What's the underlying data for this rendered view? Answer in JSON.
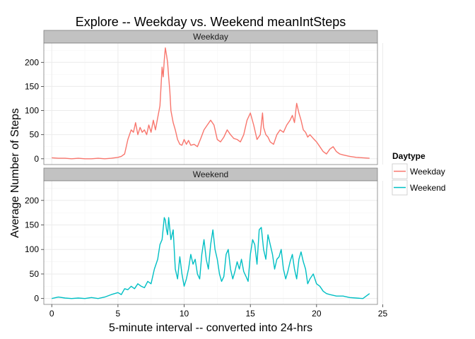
{
  "chart_data": {
    "type": "line",
    "title": "Explore -- Weekday vs. Weekend meanIntSteps",
    "xlabel": "5-minute interval -- converted into 24-hrs",
    "ylabel": "Average Number of Steps",
    "xlim": [
      -0.6,
      24.6
    ],
    "ylim": [
      -12,
      240
    ],
    "x_ticks": [
      0,
      5,
      10,
      15,
      20,
      25
    ],
    "y_ticks": [
      0,
      50,
      100,
      150,
      200
    ],
    "grid": true,
    "legend": {
      "title": "Daytype",
      "position": "right",
      "entries": [
        "Weekday",
        "Weekend"
      ]
    },
    "facets": [
      "Weekday",
      "Weekend"
    ],
    "colors": {
      "Weekday": "#F8766D",
      "Weekend": "#00BFC4"
    },
    "series": [
      {
        "name": "Weekday",
        "x": [
          0,
          0.5,
          1,
          1.5,
          2,
          2.5,
          3,
          3.5,
          4,
          4.5,
          5,
          5.25,
          5.5,
          5.75,
          6,
          6.17,
          6.33,
          6.5,
          6.67,
          6.83,
          7,
          7.17,
          7.33,
          7.5,
          7.67,
          7.83,
          8,
          8.17,
          8.33,
          8.42,
          8.5,
          8.58,
          8.67,
          8.75,
          8.83,
          8.92,
          9,
          9.17,
          9.33,
          9.5,
          9.67,
          9.83,
          10,
          10.17,
          10.33,
          10.5,
          10.75,
          11,
          11.25,
          11.5,
          11.75,
          12,
          12.25,
          12.5,
          12.75,
          13,
          13.25,
          13.5,
          13.75,
          14,
          14.25,
          14.5,
          14.75,
          15,
          15.25,
          15.5,
          15.75,
          15.92,
          16,
          16.17,
          16.33,
          16.5,
          16.75,
          17,
          17.25,
          17.5,
          17.75,
          18,
          18.17,
          18.33,
          18.5,
          18.67,
          18.83,
          19,
          19.17,
          19.33,
          19.5,
          19.75,
          20,
          20.25,
          20.5,
          20.75,
          21,
          21.25,
          21.5,
          21.75,
          22,
          22.5,
          23,
          23.5,
          24
        ],
        "values": [
          2,
          1,
          1,
          0,
          1,
          0,
          0,
          1,
          0,
          1,
          3,
          5,
          10,
          40,
          60,
          55,
          75,
          50,
          65,
          55,
          60,
          50,
          70,
          55,
          80,
          60,
          85,
          110,
          190,
          170,
          205,
          230,
          215,
          200,
          170,
          140,
          100,
          75,
          60,
          40,
          30,
          28,
          40,
          30,
          38,
          28,
          30,
          25,
          42,
          60,
          70,
          80,
          70,
          40,
          35,
          45,
          60,
          50,
          42,
          40,
          35,
          50,
          80,
          95,
          70,
          40,
          50,
          95,
          65,
          50,
          45,
          35,
          30,
          50,
          60,
          55,
          70,
          80,
          90,
          75,
          115,
          95,
          80,
          60,
          55,
          45,
          50,
          42,
          35,
          25,
          15,
          10,
          20,
          25,
          15,
          10,
          8,
          5,
          3,
          2,
          1
        ]
      },
      {
        "name": "Weekend",
        "x": [
          0,
          0.5,
          1,
          1.5,
          2,
          2.5,
          3,
          3.5,
          4,
          4.5,
          5,
          5.25,
          5.5,
          5.75,
          6,
          6.25,
          6.5,
          6.75,
          7,
          7.25,
          7.5,
          7.75,
          8,
          8.17,
          8.33,
          8.5,
          8.58,
          8.67,
          8.75,
          8.83,
          9,
          9.17,
          9.33,
          9.5,
          9.67,
          9.83,
          10,
          10.17,
          10.33,
          10.5,
          10.67,
          10.83,
          11,
          11.17,
          11.33,
          11.5,
          11.67,
          11.83,
          12,
          12.17,
          12.33,
          12.5,
          12.67,
          12.83,
          13,
          13.17,
          13.33,
          13.5,
          13.67,
          13.83,
          14,
          14.17,
          14.33,
          14.5,
          14.67,
          14.83,
          15,
          15.17,
          15.33,
          15.5,
          15.67,
          15.83,
          16,
          16.17,
          16.33,
          16.5,
          16.67,
          16.83,
          17,
          17.17,
          17.33,
          17.5,
          17.67,
          17.83,
          18,
          18.17,
          18.33,
          18.5,
          18.67,
          18.83,
          19,
          19.17,
          19.33,
          19.5,
          19.75,
          20,
          20.25,
          20.5,
          20.75,
          21,
          21.5,
          22,
          22.5,
          23,
          23.5,
          24
        ],
        "values": [
          0,
          3,
          1,
          0,
          1,
          0,
          2,
          0,
          3,
          8,
          12,
          8,
          20,
          18,
          25,
          20,
          30,
          25,
          22,
          35,
          30,
          60,
          80,
          110,
          120,
          165,
          160,
          140,
          130,
          165,
          120,
          140,
          60,
          40,
          85,
          50,
          25,
          40,
          60,
          90,
          70,
          80,
          50,
          40,
          90,
          120,
          80,
          60,
          110,
          140,
          100,
          80,
          50,
          35,
          45,
          90,
          100,
          60,
          40,
          55,
          75,
          60,
          80,
          55,
          45,
          35,
          90,
          120,
          110,
          70,
          140,
          145,
          100,
          80,
          130,
          110,
          90,
          60,
          80,
          85,
          100,
          60,
          40,
          55,
          75,
          90,
          60,
          40,
          80,
          95,
          75,
          60,
          30,
          40,
          50,
          30,
          25,
          15,
          10,
          8,
          5,
          5,
          2,
          1,
          0,
          10
        ]
      }
    ]
  }
}
